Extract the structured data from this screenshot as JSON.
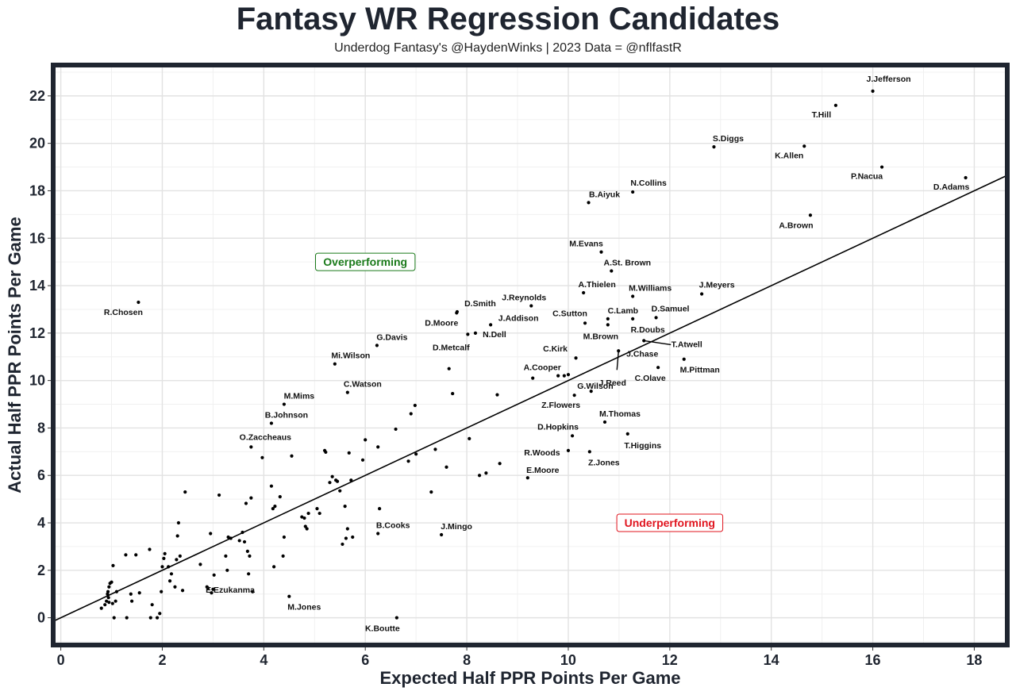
{
  "chart_data": {
    "type": "scatter",
    "title": "Fantasy WR Regression Candidates",
    "subtitle": "Underdog Fantasy's @HaydenWinks | 2023 Data = @nflfastR",
    "xlabel": "Expected Half PPR Points Per Game",
    "ylabel": "Actual Half PPR Points Per Game",
    "xlim": [
      -0.15,
      18.65
    ],
    "ylim": [
      -1.15,
      23.3
    ],
    "xticks": [
      0,
      2,
      4,
      6,
      8,
      10,
      12,
      14,
      16,
      18
    ],
    "yticks": [
      0,
      2,
      4,
      6,
      8,
      10,
      12,
      14,
      16,
      18,
      20,
      22
    ],
    "grid": true,
    "reference_line": {
      "slope": 1,
      "intercept": 0
    },
    "annotations": [
      {
        "text": "Overperforming",
        "x": 6.0,
        "y": 15.0,
        "color": "#1a7a1a"
      },
      {
        "text": "Underperforming",
        "x": 12.0,
        "y": 4.0,
        "color": "#e0141e"
      }
    ],
    "labeled_points": [
      {
        "name": "J.Jefferson",
        "x": 16.0,
        "y": 22.2
      },
      {
        "name": "T.Hill",
        "x": 15.27,
        "y": 21.6
      },
      {
        "name": "S.Diggs",
        "x": 12.87,
        "y": 19.85
      },
      {
        "name": "K.Allen",
        "x": 14.65,
        "y": 19.88
      },
      {
        "name": "P.Nacua",
        "x": 16.18,
        "y": 19.0
      },
      {
        "name": "D.Adams",
        "x": 17.83,
        "y": 18.55
      },
      {
        "name": "N.Collins",
        "x": 11.27,
        "y": 17.95
      },
      {
        "name": "B.Aiyuk",
        "x": 10.4,
        "y": 17.5
      },
      {
        "name": "A.Brown",
        "x": 14.77,
        "y": 16.97
      },
      {
        "name": "M.Evans",
        "x": 10.65,
        "y": 15.42
      },
      {
        "name": "A.St. Brown",
        "x": 10.85,
        "y": 14.62
      },
      {
        "name": "A.Thielen",
        "x": 10.3,
        "y": 13.7
      },
      {
        "name": "M.Williams",
        "x": 11.27,
        "y": 13.55
      },
      {
        "name": "J.Meyers",
        "x": 12.63,
        "y": 13.65
      },
      {
        "name": "R.Chosen",
        "x": 1.53,
        "y": 13.3
      },
      {
        "name": "J.Reynolds",
        "x": 9.27,
        "y": 13.15
      },
      {
        "name": "D.Smith",
        "x": 7.81,
        "y": 12.9
      },
      {
        "name": "C.Lamb",
        "x": 10.78,
        "y": 12.6
      },
      {
        "name": "D.Samuel",
        "x": 11.73,
        "y": 12.65
      },
      {
        "name": "C.Sutton",
        "x": 10.33,
        "y": 12.42
      },
      {
        "name": "D.Moore",
        "x": 7.8,
        "y": 12.85
      },
      {
        "name": "J.Addison",
        "x": 8.47,
        "y": 12.35
      },
      {
        "name": "R.Doubs",
        "x": 11.27,
        "y": 12.6
      },
      {
        "name": "M.Brown",
        "x": 10.78,
        "y": 12.35
      },
      {
        "name": "N.Dell",
        "x": 8.17,
        "y": 12.0
      },
      {
        "name": "D.Metcalf",
        "x": 8.02,
        "y": 11.95
      },
      {
        "name": "G.Davis",
        "x": 6.23,
        "y": 11.48
      },
      {
        "name": "T.Atwell",
        "x": 11.49,
        "y": 11.68
      },
      {
        "name": "Mi.Wilson",
        "x": 5.4,
        "y": 10.7
      },
      {
        "name": "C.Kirk",
        "x": 10.15,
        "y": 10.95
      },
      {
        "name": "J.Chase",
        "x": 10.99,
        "y": 11.25
      },
      {
        "name": "G.Wilson",
        "x": 10.0,
        "y": 10.25
      },
      {
        "name": "A.Cooper",
        "x": 9.3,
        "y": 10.1
      },
      {
        "name": "C.Olave",
        "x": 11.77,
        "y": 10.55
      },
      {
        "name": "M.Pittman",
        "x": 12.28,
        "y": 10.9
      },
      {
        "name": "C.Watson",
        "x": 5.65,
        "y": 9.5
      },
      {
        "name": "J.Reed",
        "x": 10.45,
        "y": 9.55
      },
      {
        "name": "M.Mims",
        "x": 4.4,
        "y": 9.0
      },
      {
        "name": "Z.Flowers",
        "x": 10.12,
        "y": 9.38
      },
      {
        "name": "B.Johnson",
        "x": 4.15,
        "y": 8.2
      },
      {
        "name": "M.Thomas",
        "x": 10.72,
        "y": 8.25
      },
      {
        "name": "D.Hopkins",
        "x": 10.08,
        "y": 7.67
      },
      {
        "name": "T.Higgins",
        "x": 11.17,
        "y": 7.75
      },
      {
        "name": "O.Zaccheaus",
        "x": 3.75,
        "y": 7.2
      },
      {
        "name": "R.Woods",
        "x": 10.0,
        "y": 7.05
      },
      {
        "name": "Z.Jones",
        "x": 10.42,
        "y": 7.0
      },
      {
        "name": "E.Moore",
        "x": 9.2,
        "y": 5.9
      },
      {
        "name": "B.Cooks",
        "x": 6.25,
        "y": 3.55
      },
      {
        "name": "J.Mingo",
        "x": 7.5,
        "y": 3.5
      },
      {
        "name": "E.Ezukanma",
        "x": 2.9,
        "y": 1.25
      },
      {
        "name": "M.Jones",
        "x": 4.5,
        "y": 0.9
      },
      {
        "name": "K.Boutte",
        "x": 6.62,
        "y": 0.0
      }
    ],
    "unlabeled_points": [
      [
        0.8,
        0.4
      ],
      [
        0.87,
        0.55
      ],
      [
        0.9,
        0.7
      ],
      [
        0.92,
        1.0
      ],
      [
        0.93,
        1.1
      ],
      [
        0.94,
        0.85
      ],
      [
        0.95,
        0.65
      ],
      [
        0.95,
        1.3
      ],
      [
        0.97,
        1.45
      ],
      [
        1.0,
        1.5
      ],
      [
        1.02,
        0.6
      ],
      [
        1.03,
        2.2
      ],
      [
        1.05,
        0.0
      ],
      [
        1.08,
        0.7
      ],
      [
        1.1,
        1.1
      ],
      [
        1.28,
        2.65
      ],
      [
        1.3,
        0.0
      ],
      [
        1.38,
        1.0
      ],
      [
        1.4,
        0.7
      ],
      [
        1.48,
        2.65
      ],
      [
        1.55,
        1.05
      ],
      [
        1.75,
        2.88
      ],
      [
        1.77,
        0.0
      ],
      [
        1.8,
        0.55
      ],
      [
        1.9,
        0.0
      ],
      [
        1.95,
        0.18
      ],
      [
        1.98,
        1.1
      ],
      [
        2.0,
        2.15
      ],
      [
        2.03,
        2.5
      ],
      [
        2.05,
        2.7
      ],
      [
        2.12,
        2.15
      ],
      [
        2.15,
        1.55
      ],
      [
        2.18,
        1.85
      ],
      [
        2.25,
        1.3
      ],
      [
        2.28,
        2.45
      ],
      [
        2.3,
        3.45
      ],
      [
        2.32,
        4.0
      ],
      [
        2.35,
        2.6
      ],
      [
        2.4,
        1.15
      ],
      [
        2.45,
        5.3
      ],
      [
        2.75,
        2.25
      ],
      [
        2.88,
        1.3
      ],
      [
        2.95,
        3.55
      ],
      [
        2.97,
        1.05
      ],
      [
        3.0,
        1.2
      ],
      [
        3.02,
        1.8
      ],
      [
        3.12,
        5.17
      ],
      [
        3.25,
        2.6
      ],
      [
        3.28,
        2.0
      ],
      [
        3.3,
        3.4
      ],
      [
        3.35,
        3.35
      ],
      [
        3.52,
        3.25
      ],
      [
        3.58,
        3.6
      ],
      [
        3.62,
        3.2
      ],
      [
        3.65,
        4.82
      ],
      [
        3.68,
        2.8
      ],
      [
        3.7,
        1.85
      ],
      [
        3.72,
        2.6
      ],
      [
        3.75,
        5.05
      ],
      [
        3.78,
        1.1
      ],
      [
        3.97,
        6.75
      ],
      [
        4.15,
        5.55
      ],
      [
        4.18,
        4.6
      ],
      [
        4.2,
        2.15
      ],
      [
        4.22,
        4.7
      ],
      [
        4.32,
        5.1
      ],
      [
        4.38,
        2.6
      ],
      [
        4.4,
        3.4
      ],
      [
        4.55,
        6.82
      ],
      [
        4.75,
        4.25
      ],
      [
        4.8,
        4.2
      ],
      [
        4.82,
        3.85
      ],
      [
        4.85,
        3.75
      ],
      [
        4.88,
        4.4
      ],
      [
        5.05,
        4.6
      ],
      [
        5.1,
        4.4
      ],
      [
        5.2,
        7.05
      ],
      [
        5.22,
        6.98
      ],
      [
        5.3,
        5.7
      ],
      [
        5.35,
        5.95
      ],
      [
        5.42,
        5.8
      ],
      [
        5.45,
        5.75
      ],
      [
        5.5,
        5.35
      ],
      [
        5.55,
        3.1
      ],
      [
        5.6,
        4.7
      ],
      [
        5.62,
        3.35
      ],
      [
        5.65,
        3.75
      ],
      [
        5.68,
        6.95
      ],
      [
        5.72,
        5.8
      ],
      [
        5.75,
        3.4
      ],
      [
        5.95,
        6.65
      ],
      [
        6.0,
        7.5
      ],
      [
        6.25,
        7.2
      ],
      [
        6.28,
        4.6
      ],
      [
        6.6,
        7.95
      ],
      [
        6.85,
        6.6
      ],
      [
        6.9,
        8.6
      ],
      [
        6.98,
        8.95
      ],
      [
        7.0,
        6.9
      ],
      [
        7.3,
        5.3
      ],
      [
        7.38,
        7.1
      ],
      [
        7.6,
        6.35
      ],
      [
        7.65,
        10.5
      ],
      [
        7.72,
        9.45
      ],
      [
        8.05,
        7.55
      ],
      [
        8.25,
        6.0
      ],
      [
        8.38,
        6.1
      ],
      [
        8.6,
        9.4
      ],
      [
        8.65,
        6.5
      ],
      [
        9.8,
        10.2
      ],
      [
        9.92,
        10.2
      ]
    ]
  }
}
